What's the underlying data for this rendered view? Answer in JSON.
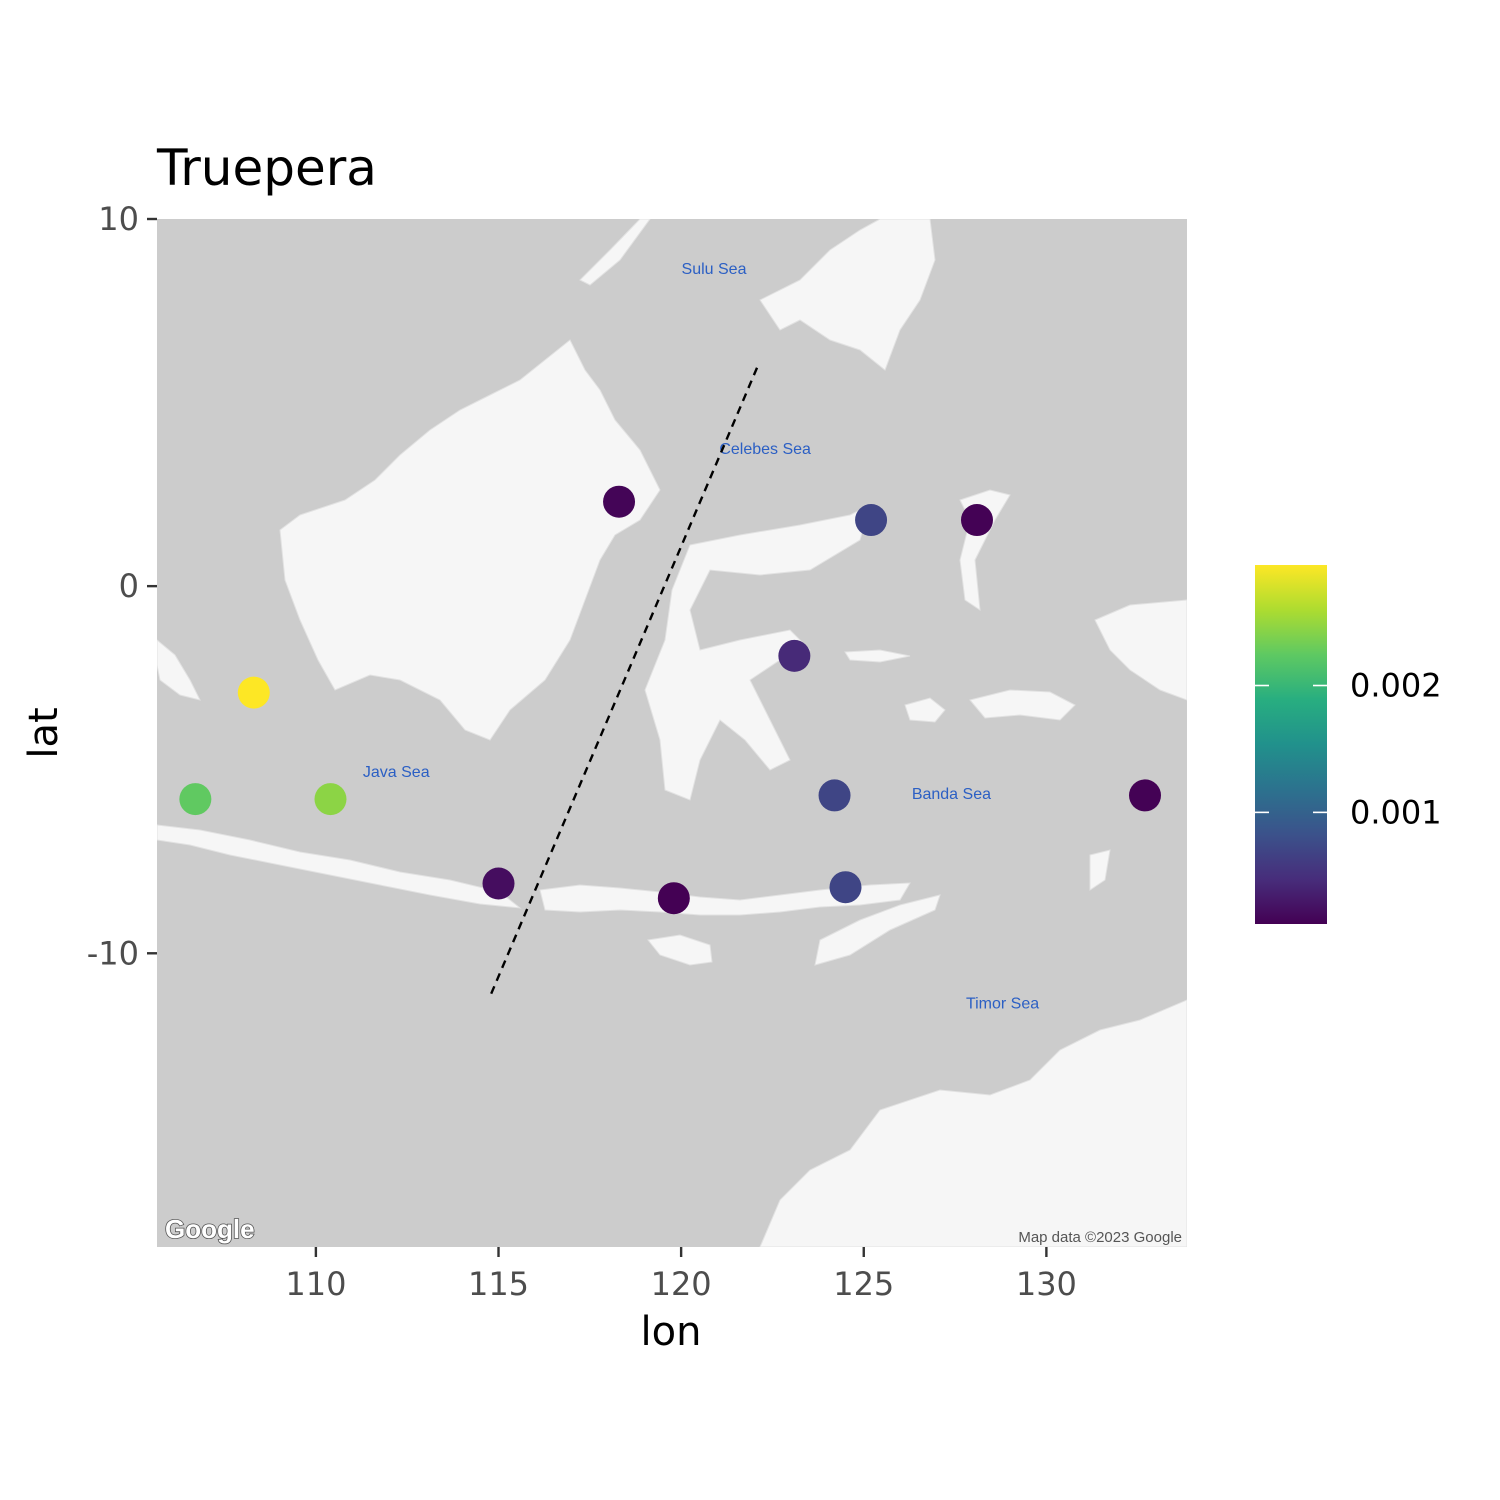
{
  "chart_data": {
    "type": "scatter",
    "title": "Truepera",
    "xlabel": "lon",
    "ylabel": "lat",
    "xlim": [
      105.65,
      133.85
    ],
    "ylim": [
      -18.0,
      10.0
    ],
    "x_ticks": [
      110,
      115,
      120,
      125,
      130
    ],
    "y_ticks": [
      10,
      0,
      -10
    ],
    "grid": false,
    "basemap": "Google terrain (greyscale)",
    "map_labels": [
      {
        "text": "Sulu Sea",
        "lon": 120.9,
        "lat": 8.5
      },
      {
        "text": "Celebes Sea",
        "lon": 122.3,
        "lat": 3.6
      },
      {
        "text": "Java Sea",
        "lon": 112.2,
        "lat": -5.2
      },
      {
        "text": "Banda Sea",
        "lon": 127.4,
        "lat": -5.8
      },
      {
        "text": "Timor Sea",
        "lon": 128.8,
        "lat": -11.5
      }
    ],
    "attribution": "Map data ©2023 Google",
    "logo_text": "Google",
    "dashed_line": {
      "x": [
        114.8,
        122.1
      ],
      "y": [
        -11.1,
        6.0
      ]
    },
    "color_scale": {
      "name": "viridis",
      "domain": [
        0.00012,
        0.00295
      ],
      "breaks": [
        0.001,
        0.002
      ],
      "break_labels": [
        "0.001",
        "0.002"
      ],
      "legend_placement": "right"
    },
    "points": [
      {
        "lon": 108.3,
        "lat": -2.9,
        "value": 0.00295
      },
      {
        "lon": 106.7,
        "lat": -5.8,
        "value": 0.00225
      },
      {
        "lon": 110.4,
        "lat": -5.8,
        "value": 0.00245
      },
      {
        "lon": 118.3,
        "lat": 2.3,
        "value": 0.00015
      },
      {
        "lon": 115.0,
        "lat": -8.1,
        "value": 0.00022
      },
      {
        "lon": 119.8,
        "lat": -8.5,
        "value": 0.00012
      },
      {
        "lon": 123.1,
        "lat": -1.9,
        "value": 0.00045
      },
      {
        "lon": 125.2,
        "lat": 1.8,
        "value": 0.0007
      },
      {
        "lon": 128.1,
        "lat": 1.8,
        "value": 0.00013
      },
      {
        "lon": 124.2,
        "lat": -5.7,
        "value": 0.0007
      },
      {
        "lon": 124.5,
        "lat": -8.2,
        "value": 0.0007
      },
      {
        "lon": 132.7,
        "lat": -5.7,
        "value": 0.00013
      }
    ]
  }
}
